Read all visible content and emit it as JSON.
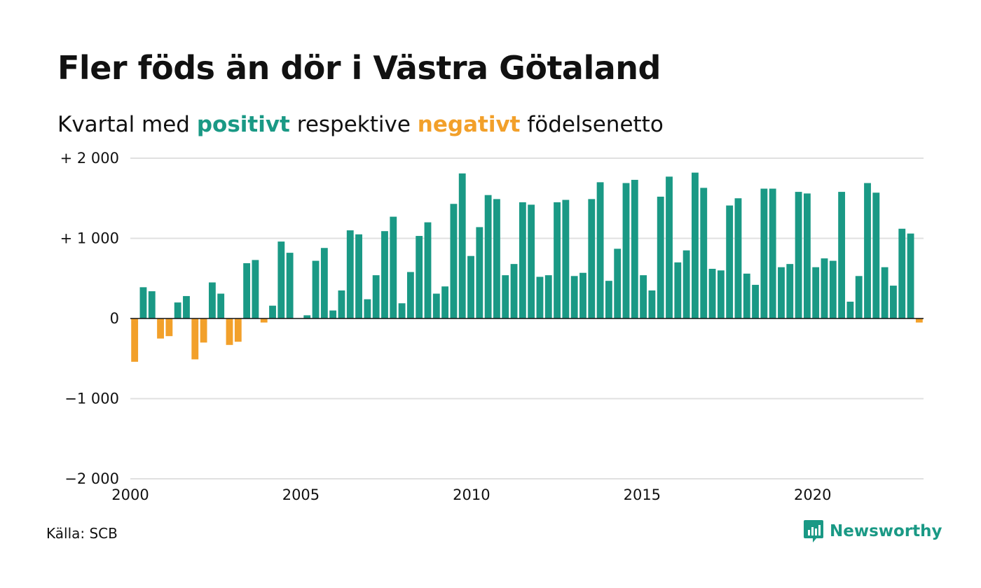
{
  "title": "Fler föds än dör i Västra Götaland",
  "subtitle": {
    "prefix": "Kvartal med",
    "positive_word": "positivt",
    "middle": "respektive",
    "negative_word": "negativt",
    "suffix": "födelsenetto"
  },
  "source": "Källa: SCB",
  "brand": "Newsworthy",
  "colors": {
    "positive": "#1a9985",
    "negative": "#f2a02a",
    "grid": "#e0e0e0",
    "zero": "#111111"
  },
  "chart_data": {
    "type": "bar",
    "title": "Fler föds än dör i Västra Götaland",
    "subtitle": "Kvartal med positivt respektive negativt födelsenetto",
    "xlabel": "",
    "ylabel": "",
    "xlim": [
      2000,
      2023.25
    ],
    "ylim": [
      -2000,
      2000
    ],
    "grid": true,
    "x_ticks": [
      {
        "value": 2000,
        "label": "2000"
      },
      {
        "value": 2005,
        "label": "2005"
      },
      {
        "value": 2010,
        "label": "2010"
      },
      {
        "value": 2015,
        "label": "2015"
      },
      {
        "value": 2020,
        "label": "2020"
      }
    ],
    "y_ticks": [
      {
        "value": 2000,
        "label": "+ 2 000"
      },
      {
        "value": 1000,
        "label": "+ 1 000"
      },
      {
        "value": 0,
        "label": "0"
      },
      {
        "value": -1000,
        "label": "−1 000"
      },
      {
        "value": -2000,
        "label": "−2 000"
      }
    ],
    "quarters_start": "2000 Q1",
    "values": [
      -540,
      390,
      340,
      -250,
      -220,
      200,
      280,
      -510,
      -300,
      450,
      310,
      -330,
      -290,
      690,
      730,
      -50,
      160,
      960,
      820,
      0,
      40,
      720,
      880,
      100,
      350,
      1100,
      1050,
      240,
      540,
      1090,
      1270,
      190,
      580,
      1030,
      1200,
      310,
      400,
      1430,
      1810,
      780,
      1140,
      1540,
      1490,
      540,
      680,
      1450,
      1420,
      520,
      540,
      1450,
      1480,
      530,
      570,
      1490,
      1700,
      470,
      870,
      1690,
      1730,
      540,
      350,
      1520,
      1770,
      700,
      850,
      1820,
      1630,
      620,
      600,
      1410,
      1500,
      560,
      420,
      1620,
      1620,
      640,
      680,
      1580,
      1560,
      640,
      750,
      720,
      1580,
      210,
      530,
      1690,
      1570,
      640,
      410,
      1120,
      1060,
      -50
    ]
  }
}
